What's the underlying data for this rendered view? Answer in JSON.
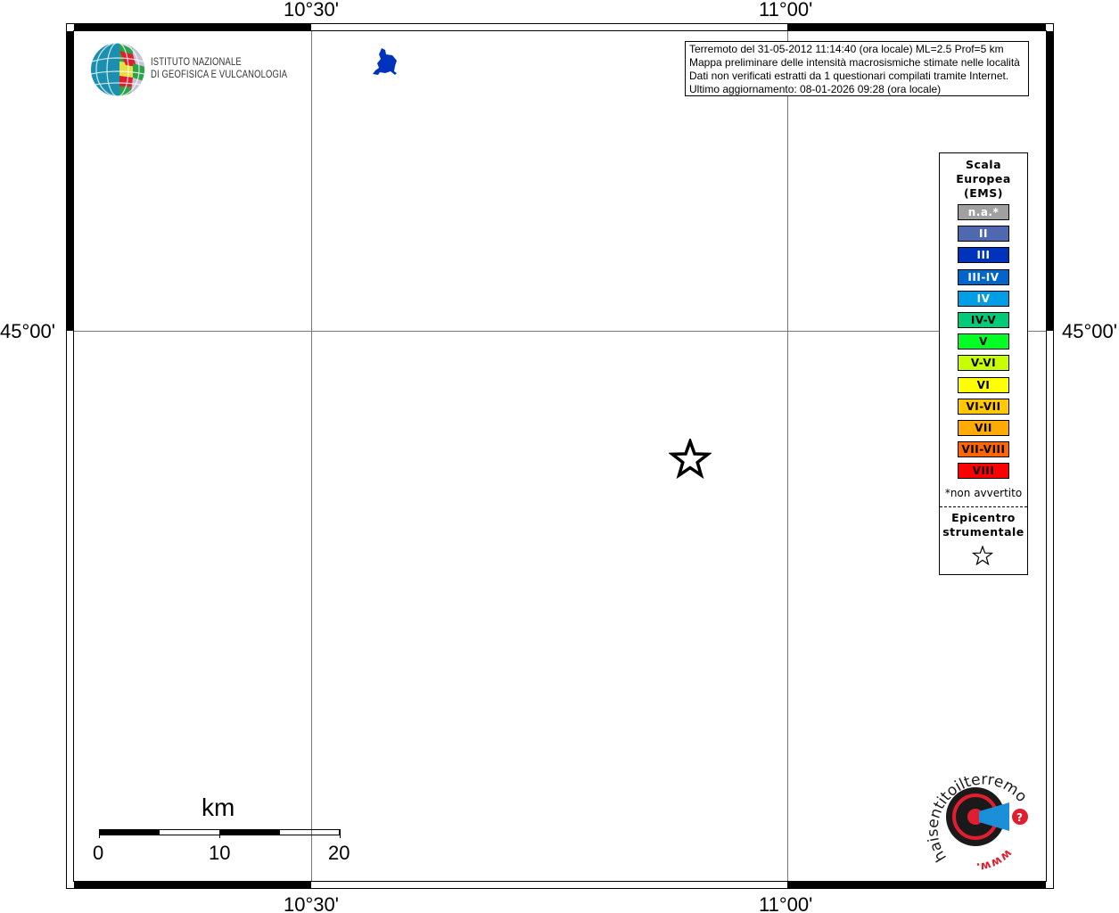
{
  "map": {
    "coordinates": {
      "lon_left": "10°30'",
      "lon_right": "11°00'",
      "lat_mid": "45°00'"
    },
    "info": {
      "line1": "Terremoto del 31-05-2012 11:14:40 (ora locale) ML=2.5 Prof=5 km",
      "line2": "Mappa preliminare delle intensità macrosismiche stimate nelle località",
      "line3": "Dati non verificati estratti da 1 questionari compilati tramite Internet.",
      "line4": "Ultimo aggiornamento: 08-01-2026 09:28 (ora locale)"
    },
    "ingv_logo": {
      "line1": "ISTITUTO NAZIONALE",
      "line2": "DI GEOFISICA E VULCANOLOGIA"
    },
    "hsit_logo": "haisentitoilterremoto.it www.",
    "legend": {
      "title1": "Scala",
      "title2": "Europea",
      "title3": "(EMS)",
      "items": [
        {
          "label": "n.a.*",
          "color": "#a0a0a0",
          "text_color": "#ffffff"
        },
        {
          "label": "II",
          "color": "#4f69b0",
          "text_color": "#ffffff"
        },
        {
          "label": "III",
          "color": "#0033bb",
          "text_color": "#ffffff"
        },
        {
          "label": "III-IV",
          "color": "#0066cc",
          "text_color": "#ffffff"
        },
        {
          "label": "IV",
          "color": "#009ee6",
          "text_color": "#ffffff"
        },
        {
          "label": "IV-V",
          "color": "#00cc77",
          "text_color": "#000000"
        },
        {
          "label": "V",
          "color": "#00ff22",
          "text_color": "#000000"
        },
        {
          "label": "V-VI",
          "color": "#c8ff00",
          "text_color": "#000000"
        },
        {
          "label": "VI",
          "color": "#ffff00",
          "text_color": "#000000"
        },
        {
          "label": "VI-VII",
          "color": "#ffc800",
          "text_color": "#000000"
        },
        {
          "label": "VII",
          "color": "#ffaa00",
          "text_color": "#000000"
        },
        {
          "label": "VII-VIII",
          "color": "#ff6600",
          "text_color": "#000000"
        },
        {
          "label": "VIII",
          "color": "#ff0000",
          "text_color": "#000000"
        }
      ],
      "note": "*non avvertito",
      "epicenter1": "Epicentro",
      "epicenter2": "strumentale"
    },
    "scale_bar": {
      "unit": "km",
      "labels": [
        "0",
        "10",
        "20"
      ]
    },
    "colors": {
      "locality_fill": "#0033bb"
    }
  }
}
